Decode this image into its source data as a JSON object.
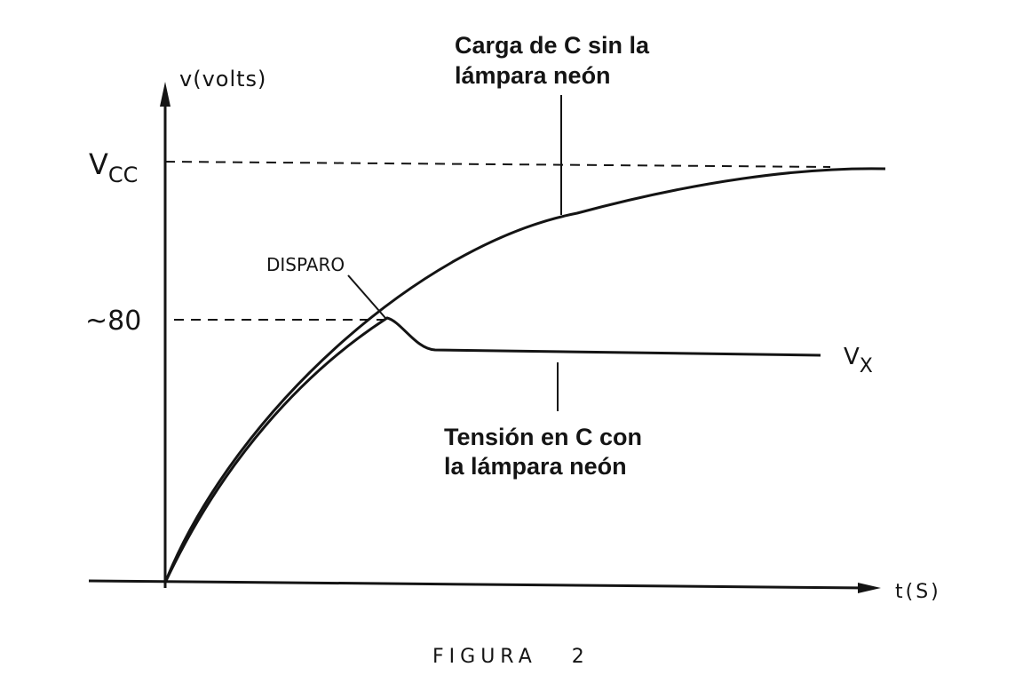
{
  "chart_data": {
    "type": "line",
    "title": "",
    "caption": "FIGURA   2",
    "xlabel": "t(S)",
    "ylabel": "v(volts)",
    "grid": false,
    "legend": "none",
    "y_reference_lines": [
      {
        "label": "V",
        "label_sub": "CC",
        "style": "dashed"
      },
      {
        "label": "~80",
        "value": 80,
        "style": "dashed"
      }
    ],
    "series": [
      {
        "label": "Carga de C sin la lámpara neón",
        "curve": "exponential-charge-to-Vcc"
      },
      {
        "label": "Tensión en C con la lámpara neón",
        "end_label": "V",
        "end_label_sub": "X",
        "curve": "charge-to-80-then-drop-and-hold"
      }
    ],
    "annotations": [
      {
        "text": "DISPARO",
        "points_to": "firing-point"
      }
    ],
    "colors": {
      "ink": "#141414",
      "background": "#ffffff"
    }
  }
}
